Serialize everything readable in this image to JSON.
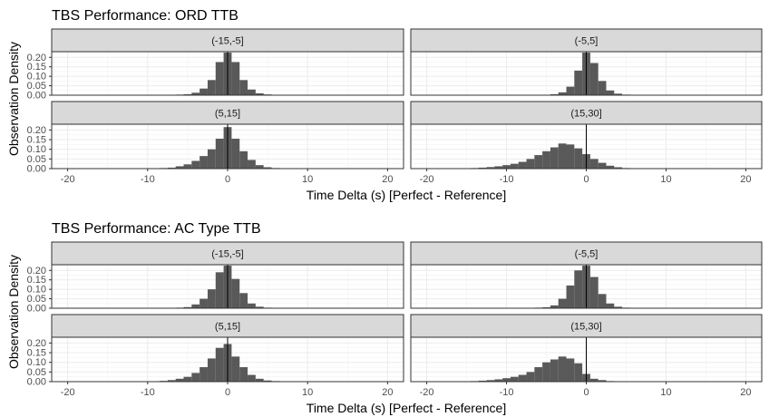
{
  "chart_data": [
    {
      "type": "histogram",
      "title": "TBS Performance: ORD TTB",
      "xlabel": "Time Delta (s) [Perfect - Reference]",
      "ylabel": "Observation Density",
      "xlim": [
        -22,
        22
      ],
      "ylim": [
        0,
        0.23
      ],
      "x_ticks": [
        "-20",
        "-10",
        "0",
        "10",
        "20"
      ],
      "y_ticks": [
        "0.00",
        "0.05",
        "0.10",
        "0.15",
        "0.20"
      ],
      "bin_width": 1,
      "reference_line_x": 0,
      "grid": true,
      "bar_color": "#595959",
      "facets": [
        {
          "label": "(-15,-5]",
          "bins": [
            {
              "x": -11,
              "y": 0.002
            },
            {
              "x": -7,
              "y": 0.002
            },
            {
              "x": -6,
              "y": 0.003
            },
            {
              "x": -5,
              "y": 0.005
            },
            {
              "x": -4,
              "y": 0.013
            },
            {
              "x": -3,
              "y": 0.035
            },
            {
              "x": -2,
              "y": 0.08
            },
            {
              "x": -1,
              "y": 0.175
            },
            {
              "x": 0,
              "y": 0.225
            },
            {
              "x": 1,
              "y": 0.175
            },
            {
              "x": 2,
              "y": 0.08
            },
            {
              "x": 3,
              "y": 0.03
            },
            {
              "x": 4,
              "y": 0.01
            },
            {
              "x": 5,
              "y": 0.004
            },
            {
              "x": 6,
              "y": 0.002
            },
            {
              "x": 7,
              "y": 0.002
            },
            {
              "x": 11,
              "y": 0.002
            }
          ]
        },
        {
          "label": "(-5,5]",
          "bins": [
            {
              "x": -7,
              "y": 0.002
            },
            {
              "x": -6,
              "y": 0.002
            },
            {
              "x": -5,
              "y": 0.002
            },
            {
              "x": -4,
              "y": 0.005
            },
            {
              "x": -3,
              "y": 0.015
            },
            {
              "x": -2,
              "y": 0.045
            },
            {
              "x": -1,
              "y": 0.13
            },
            {
              "x": 0,
              "y": 0.225
            },
            {
              "x": 1,
              "y": 0.17
            },
            {
              "x": 2,
              "y": 0.075
            },
            {
              "x": 3,
              "y": 0.025
            },
            {
              "x": 4,
              "y": 0.008
            },
            {
              "x": 5,
              "y": 0.003
            },
            {
              "x": 6,
              "y": 0.002
            }
          ]
        },
        {
          "label": "(5,15]",
          "bins": [
            {
              "x": -10,
              "y": 0.002
            },
            {
              "x": -9,
              "y": 0.002
            },
            {
              "x": -8,
              "y": 0.003
            },
            {
              "x": -7,
              "y": 0.005
            },
            {
              "x": -6,
              "y": 0.012
            },
            {
              "x": -5,
              "y": 0.022
            },
            {
              "x": -4,
              "y": 0.04
            },
            {
              "x": -3,
              "y": 0.065
            },
            {
              "x": -2,
              "y": 0.1
            },
            {
              "x": -1,
              "y": 0.155
            },
            {
              "x": 0,
              "y": 0.215
            },
            {
              "x": 1,
              "y": 0.155
            },
            {
              "x": 2,
              "y": 0.09
            },
            {
              "x": 3,
              "y": 0.045
            },
            {
              "x": 4,
              "y": 0.018
            },
            {
              "x": 5,
              "y": 0.007
            },
            {
              "x": 6,
              "y": 0.003
            },
            {
              "x": 7,
              "y": 0.002
            }
          ]
        },
        {
          "label": "(15,30]",
          "bins": [
            {
              "x": -16,
              "y": 0.002
            },
            {
              "x": -15,
              "y": 0.002
            },
            {
              "x": -14,
              "y": 0.003
            },
            {
              "x": -13,
              "y": 0.005
            },
            {
              "x": -12,
              "y": 0.008
            },
            {
              "x": -11,
              "y": 0.012
            },
            {
              "x": -10,
              "y": 0.018
            },
            {
              "x": -9,
              "y": 0.025
            },
            {
              "x": -8,
              "y": 0.035
            },
            {
              "x": -7,
              "y": 0.05
            },
            {
              "x": -6,
              "y": 0.07
            },
            {
              "x": -5,
              "y": 0.09
            },
            {
              "x": -4,
              "y": 0.11
            },
            {
              "x": -3,
              "y": 0.13
            },
            {
              "x": -2,
              "y": 0.125
            },
            {
              "x": -1,
              "y": 0.105
            },
            {
              "x": 0,
              "y": 0.075
            },
            {
              "x": 1,
              "y": 0.05
            },
            {
              "x": 2,
              "y": 0.03
            },
            {
              "x": 3,
              "y": 0.015
            },
            {
              "x": 4,
              "y": 0.007
            },
            {
              "x": 5,
              "y": 0.003
            },
            {
              "x": 6,
              "y": 0.002
            },
            {
              "x": 7,
              "y": 0.002
            },
            {
              "x": 8,
              "y": 0.002
            }
          ]
        }
      ]
    },
    {
      "type": "histogram",
      "title": "TBS Performance: AC Type TTB",
      "xlabel": "Time Delta (s) [Perfect - Reference]",
      "ylabel": "Observation Density",
      "xlim": [
        -22,
        22
      ],
      "ylim": [
        0,
        0.23
      ],
      "x_ticks": [
        "-20",
        "-10",
        "0",
        "10",
        "20"
      ],
      "y_ticks": [
        "0.00",
        "0.05",
        "0.10",
        "0.15",
        "0.20"
      ],
      "bin_width": 1,
      "reference_line_x": 0,
      "grid": true,
      "bar_color": "#595959",
      "facets": [
        {
          "label": "(-15,-5]",
          "bins": [
            {
              "x": -12,
              "y": 0.002
            },
            {
              "x": -7,
              "y": 0.002
            },
            {
              "x": -6,
              "y": 0.003
            },
            {
              "x": -5,
              "y": 0.006
            },
            {
              "x": -4,
              "y": 0.02
            },
            {
              "x": -3,
              "y": 0.05
            },
            {
              "x": -2,
              "y": 0.1
            },
            {
              "x": -1,
              "y": 0.19
            },
            {
              "x": 0,
              "y": 0.225
            },
            {
              "x": 1,
              "y": 0.155
            },
            {
              "x": 2,
              "y": 0.08
            },
            {
              "x": 3,
              "y": 0.025
            },
            {
              "x": 4,
              "y": 0.008
            },
            {
              "x": 5,
              "y": 0.003
            },
            {
              "x": 6,
              "y": 0.002
            },
            {
              "x": 12,
              "y": 0.002
            }
          ]
        },
        {
          "label": "(-5,5]",
          "bins": [
            {
              "x": -8,
              "y": 0.002
            },
            {
              "x": -7,
              "y": 0.002
            },
            {
              "x": -6,
              "y": 0.003
            },
            {
              "x": -5,
              "y": 0.005
            },
            {
              "x": -4,
              "y": 0.015
            },
            {
              "x": -3,
              "y": 0.05
            },
            {
              "x": -2,
              "y": 0.12
            },
            {
              "x": -1,
              "y": 0.2
            },
            {
              "x": 0,
              "y": 0.225
            },
            {
              "x": 1,
              "y": 0.165
            },
            {
              "x": 2,
              "y": 0.075
            },
            {
              "x": 3,
              "y": 0.025
            },
            {
              "x": 4,
              "y": 0.008
            },
            {
              "x": 5,
              "y": 0.003
            },
            {
              "x": 6,
              "y": 0.002
            },
            {
              "x": 8,
              "y": 0.002
            }
          ]
        },
        {
          "label": "(5,15]",
          "bins": [
            {
              "x": -11,
              "y": 0.002
            },
            {
              "x": -10,
              "y": 0.002
            },
            {
              "x": -9,
              "y": 0.002
            },
            {
              "x": -8,
              "y": 0.004
            },
            {
              "x": -7,
              "y": 0.008
            },
            {
              "x": -6,
              "y": 0.015
            },
            {
              "x": -5,
              "y": 0.025
            },
            {
              "x": -4,
              "y": 0.045
            },
            {
              "x": -3,
              "y": 0.075
            },
            {
              "x": -2,
              "y": 0.12
            },
            {
              "x": -1,
              "y": 0.175
            },
            {
              "x": 0,
              "y": 0.195
            },
            {
              "x": 1,
              "y": 0.13
            },
            {
              "x": 2,
              "y": 0.075
            },
            {
              "x": 3,
              "y": 0.035
            },
            {
              "x": 4,
              "y": 0.015
            },
            {
              "x": 5,
              "y": 0.006
            },
            {
              "x": 6,
              "y": 0.003
            },
            {
              "x": 7,
              "y": 0.002
            },
            {
              "x": 8,
              "y": 0.002
            }
          ]
        },
        {
          "label": "(15,30]",
          "bins": [
            {
              "x": -20,
              "y": 0.002
            },
            {
              "x": -19,
              "y": 0.002
            },
            {
              "x": -18,
              "y": 0.002
            },
            {
              "x": -17,
              "y": 0.002
            },
            {
              "x": -16,
              "y": 0.002
            },
            {
              "x": -15,
              "y": 0.002
            },
            {
              "x": -14,
              "y": 0.003
            },
            {
              "x": -13,
              "y": 0.005
            },
            {
              "x": -12,
              "y": 0.008
            },
            {
              "x": -11,
              "y": 0.012
            },
            {
              "x": -10,
              "y": 0.018
            },
            {
              "x": -9,
              "y": 0.025
            },
            {
              "x": -8,
              "y": 0.035
            },
            {
              "x": -7,
              "y": 0.05
            },
            {
              "x": -6,
              "y": 0.075
            },
            {
              "x": -5,
              "y": 0.1
            },
            {
              "x": -4,
              "y": 0.115
            },
            {
              "x": -3,
              "y": 0.13
            },
            {
              "x": -2,
              "y": 0.12
            },
            {
              "x": -1,
              "y": 0.095
            },
            {
              "x": 0,
              "y": 0.04
            },
            {
              "x": 1,
              "y": 0.015
            },
            {
              "x": 2,
              "y": 0.008
            },
            {
              "x": 3,
              "y": 0.003
            },
            {
              "x": 5,
              "y": 0.002
            },
            {
              "x": 6,
              "y": 0.002
            }
          ]
        }
      ]
    }
  ]
}
